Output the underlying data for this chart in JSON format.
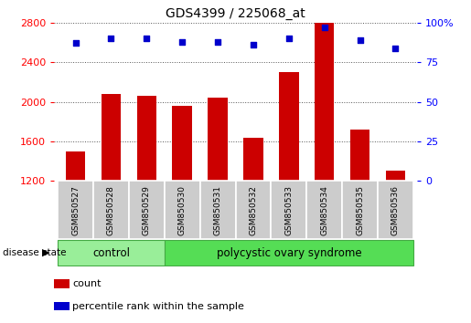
{
  "title": "GDS4399 / 225068_at",
  "samples": [
    "GSM850527",
    "GSM850528",
    "GSM850529",
    "GSM850530",
    "GSM850531",
    "GSM850532",
    "GSM850533",
    "GSM850534",
    "GSM850535",
    "GSM850536"
  ],
  "counts": [
    1500,
    2080,
    2060,
    1960,
    2040,
    1640,
    2300,
    2800,
    1720,
    1300
  ],
  "percentile_ranks": [
    87,
    90,
    90,
    88,
    88,
    86,
    90,
    97,
    89,
    84
  ],
  "ylim_left": [
    1200,
    2800
  ],
  "ylim_right": [
    0,
    100
  ],
  "yticks_left": [
    1200,
    1600,
    2000,
    2400,
    2800
  ],
  "yticks_right": [
    0,
    25,
    50,
    75,
    100
  ],
  "bar_color": "#cc0000",
  "dot_color": "#0000cc",
  "n_control": 3,
  "n_pcos": 7,
  "control_label": "control",
  "pcos_label": "polycystic ovary syndrome",
  "disease_state_label": "disease state",
  "legend_count_label": "count",
  "legend_pct_label": "percentile rank within the sample",
  "control_color": "#99ee99",
  "pcos_color": "#55dd55",
  "sample_box_color": "#cccccc",
  "background_color": "#ffffff",
  "grid_color": "#555555"
}
